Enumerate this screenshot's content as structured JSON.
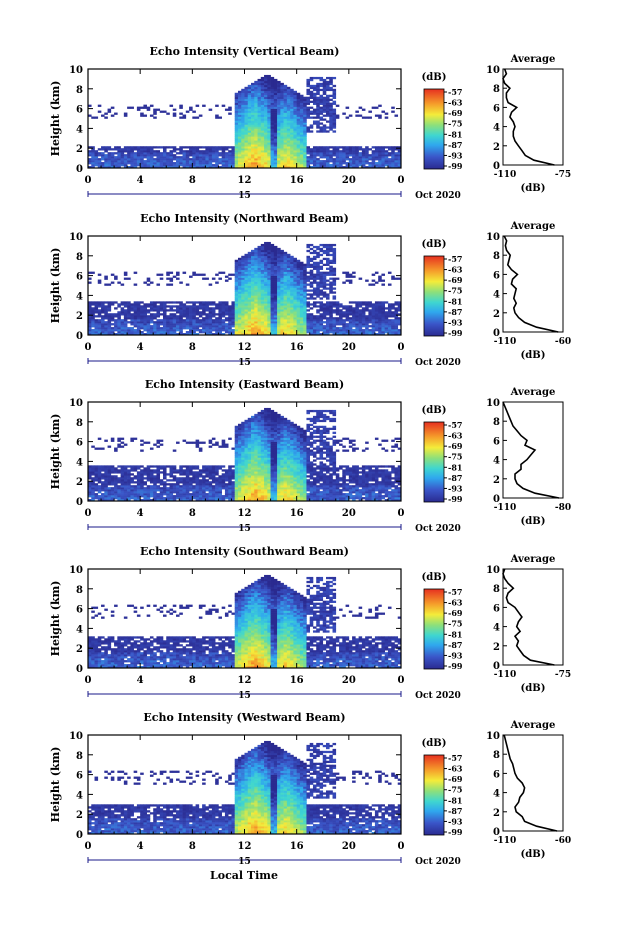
{
  "figure": {
    "xlabel": "Local Time",
    "date_label": "Oct 2020",
    "day_label": "15",
    "average_title": "Average",
    "colorbar_unit": "(dB)",
    "colorbar_ticks": [
      "-57",
      "-63",
      "-69",
      "-75",
      "-81",
      "-87",
      "-93",
      "-99"
    ],
    "time_ticks": [
      "0",
      "4",
      "8",
      "12",
      "16",
      "20",
      "0"
    ],
    "height_ticks": [
      "0",
      "2",
      "4",
      "6",
      "8",
      "10"
    ],
    "ylabel": "Height (km)",
    "avg_xlabel": "(dB)"
  },
  "chart_data": [
    {
      "type": "heatmap",
      "title": "Echo Intensity (Vertical Beam)",
      "xlabel": "",
      "ylabel": "Height (km)",
      "xlim": [
        0,
        24
      ],
      "ylim": [
        0,
        10
      ],
      "color_range_db": [
        -99,
        -57
      ],
      "average_profile": {
        "xlim": [
          -110,
          -75
        ],
        "x_ticks": [
          "-110",
          "-75"
        ],
        "height_km": [
          0,
          0.5,
          1,
          1.5,
          2,
          2.5,
          3,
          3.5,
          4,
          4.5,
          5,
          5.5,
          6,
          6.5,
          7,
          7.5,
          8,
          8.5,
          9,
          9.5,
          10
        ],
        "db": [
          -80,
          -92,
          -97,
          -99,
          -101,
          -103,
          -104,
          -104,
          -103,
          -104,
          -106,
          -105,
          -102,
          -107,
          -108,
          -108,
          -106,
          -109,
          -110,
          -108,
          -109
        ]
      }
    },
    {
      "type": "heatmap",
      "title": "Echo Intensity (Northward Beam)",
      "xlabel": "",
      "ylabel": "Height (km)",
      "xlim": [
        0,
        24
      ],
      "ylim": [
        0,
        10
      ],
      "color_range_db": [
        -99,
        -57
      ],
      "average_profile": {
        "xlim": [
          -110,
          -60
        ],
        "x_ticks": [
          "-110",
          "-60"
        ],
        "height_km": [
          0,
          0.5,
          1,
          1.5,
          2,
          2.5,
          3,
          3.5,
          4,
          4.5,
          5,
          5.5,
          6,
          6.5,
          7,
          7.5,
          8,
          8.5,
          9,
          9.5,
          10
        ],
        "db": [
          -64,
          -82,
          -92,
          -97,
          -100,
          -101,
          -99,
          -101,
          -100,
          -99,
          -103,
          -102,
          -98,
          -103,
          -106,
          -105,
          -104,
          -107,
          -108,
          -107,
          -109
        ]
      }
    },
    {
      "type": "heatmap",
      "title": "Echo Intensity (Eastward Beam)",
      "xlabel": "",
      "ylabel": "Height (km)",
      "xlim": [
        0,
        24
      ],
      "ylim": [
        0,
        10
      ],
      "color_range_db": [
        -99,
        -57
      ],
      "average_profile": {
        "xlim": [
          -110,
          -80
        ],
        "x_ticks": [
          "-110",
          "-80"
        ],
        "height_km": [
          0,
          0.5,
          1,
          1.5,
          2,
          2.5,
          3,
          3.5,
          4,
          4.5,
          5,
          5.5,
          6,
          6.5,
          7,
          7.5,
          8,
          8.5,
          9,
          9.5,
          10
        ],
        "db": [
          -82,
          -94,
          -100,
          -103,
          -104,
          -104,
          -101,
          -101,
          -98,
          -96,
          -94,
          -99,
          -98,
          -101,
          -103,
          -105,
          -106,
          -107,
          -108,
          -109,
          -110
        ]
      }
    },
    {
      "type": "heatmap",
      "title": "Echo Intensity (Southward Beam)",
      "xlabel": "",
      "ylabel": "Height (km)",
      "xlim": [
        0,
        24
      ],
      "ylim": [
        0,
        10
      ],
      "color_range_db": [
        -99,
        -57
      ],
      "average_profile": {
        "xlim": [
          -110,
          -75
        ],
        "x_ticks": [
          "-110",
          "-75"
        ],
        "height_km": [
          0,
          0.5,
          1,
          1.5,
          2,
          2.5,
          3,
          3.5,
          4,
          4.5,
          5,
          5.5,
          6,
          6.5,
          7,
          7.5,
          8,
          8.5,
          9,
          9.5,
          10
        ],
        "db": [
          -80,
          -94,
          -98,
          -100,
          -102,
          -101,
          -103,
          -100,
          -102,
          -101,
          -99,
          -101,
          -103,
          -107,
          -108,
          -107,
          -104,
          -107,
          -109,
          -110,
          -109
        ]
      }
    },
    {
      "type": "heatmap",
      "title": "Echo Intensity (Westward Beam)",
      "xlabel": "Local Time",
      "ylabel": "Height (km)",
      "xlim": [
        0,
        24
      ],
      "ylim": [
        0,
        10
      ],
      "color_range_db": [
        -99,
        -57
      ],
      "average_profile": {
        "xlim": [
          -110,
          -60
        ],
        "x_ticks": [
          "-110",
          "-60"
        ],
        "height_km": [
          0,
          0.5,
          1,
          1.5,
          2,
          2.5,
          3,
          3.5,
          4,
          4.5,
          5,
          5.5,
          6,
          6.5,
          7,
          7.5,
          8,
          8.5,
          9,
          9.5,
          10
        ],
        "db": [
          -65,
          -82,
          -92,
          -94,
          -99,
          -100,
          -97,
          -96,
          -93,
          -92,
          -94,
          -98,
          -100,
          -101,
          -102,
          -104,
          -105,
          -106,
          -107,
          -108,
          -109
        ]
      }
    }
  ]
}
